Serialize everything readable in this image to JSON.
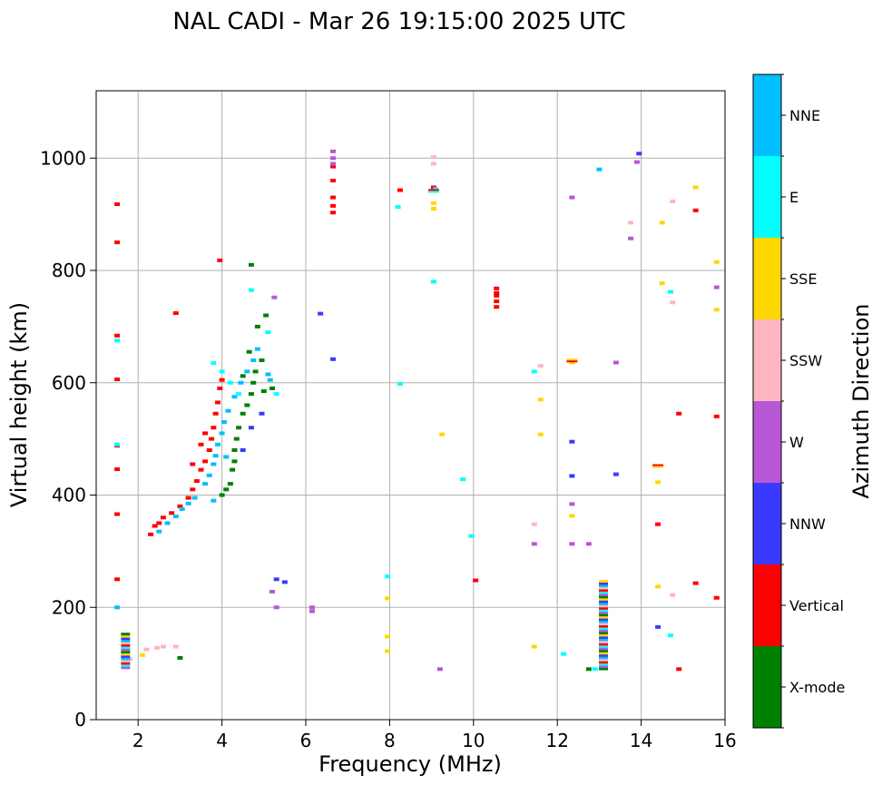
{
  "chart_data": {
    "type": "scatter",
    "title": "NAL CADI - Mar 26 19:15:00 2025 UTC",
    "xlabel": "Frequency (MHz)",
    "ylabel": "Virtual height (km)",
    "xlim": [
      1,
      16
    ],
    "ylim": [
      0,
      1120
    ],
    "xticks": [
      2,
      4,
      6,
      8,
      10,
      12,
      14,
      16
    ],
    "yticks": [
      0,
      200,
      400,
      600,
      800,
      1000
    ],
    "grid": true,
    "colorbar": {
      "label": "Azimuth Direction",
      "categories": [
        {
          "name": "X-mode",
          "color": "#008000"
        },
        {
          "name": "Vertical",
          "color": "#ff0000"
        },
        {
          "name": "NNW",
          "color": "#3a3aff"
        },
        {
          "name": "W",
          "color": "#b857d6"
        },
        {
          "name": "SSW",
          "color": "#ffb6c1"
        },
        {
          "name": "SSE",
          "color": "#ffd700"
        },
        {
          "name": "E",
          "color": "#00ffff"
        },
        {
          "name": "NNE",
          "color": "#00bfff"
        }
      ]
    },
    "series": [
      {
        "name": "Vertical",
        "points": [
          [
            1.5,
            918
          ],
          [
            1.5,
            850
          ],
          [
            1.5,
            684
          ],
          [
            1.5,
            606
          ],
          [
            1.5,
            488
          ],
          [
            1.5,
            446
          ],
          [
            1.5,
            366
          ],
          [
            1.5,
            250
          ],
          [
            3.95,
            818
          ],
          [
            2.9,
            724
          ],
          [
            6.65,
            930
          ],
          [
            6.65,
            915
          ],
          [
            6.65,
            903
          ],
          [
            6.65,
            960
          ],
          [
            6.65,
            985
          ],
          [
            8.25,
            943
          ],
          [
            9.05,
            948
          ],
          [
            10.55,
            768
          ],
          [
            10.55,
            755
          ],
          [
            10.55,
            745
          ],
          [
            10.55,
            735
          ],
          [
            10.55,
            760
          ],
          [
            10.05,
            248
          ],
          [
            14.4,
            348
          ],
          [
            14.9,
            545
          ],
          [
            15.8,
            540
          ],
          [
            15.3,
            907
          ],
          [
            15.3,
            243
          ],
          [
            15.8,
            217
          ],
          [
            14.9,
            90
          ],
          [
            2.3,
            330
          ],
          [
            2.4,
            345
          ],
          [
            2.5,
            350
          ],
          [
            2.6,
            360
          ],
          [
            2.8,
            368
          ],
          [
            3.0,
            380
          ],
          [
            3.2,
            395
          ],
          [
            3.3,
            410
          ],
          [
            3.4,
            425
          ],
          [
            3.5,
            445
          ],
          [
            3.6,
            460
          ],
          [
            3.7,
            480
          ],
          [
            3.75,
            500
          ],
          [
            3.8,
            520
          ],
          [
            3.85,
            545
          ],
          [
            3.9,
            565
          ],
          [
            3.95,
            590
          ],
          [
            4.0,
            605
          ],
          [
            3.6,
            510
          ],
          [
            3.5,
            490
          ],
          [
            3.3,
            455
          ]
        ]
      },
      {
        "name": "X-mode",
        "points": [
          [
            4.0,
            400
          ],
          [
            4.1,
            410
          ],
          [
            4.2,
            420
          ],
          [
            4.25,
            445
          ],
          [
            4.3,
            460
          ],
          [
            4.3,
            480
          ],
          [
            4.35,
            500
          ],
          [
            4.4,
            520
          ],
          [
            4.5,
            545
          ],
          [
            4.6,
            560
          ],
          [
            4.7,
            580
          ],
          [
            4.75,
            600
          ],
          [
            4.8,
            620
          ],
          [
            4.65,
            655
          ],
          [
            4.85,
            700
          ],
          [
            5.0,
            585
          ],
          [
            5.05,
            720
          ],
          [
            5.2,
            590
          ],
          [
            4.7,
            810
          ],
          [
            4.95,
            640
          ],
          [
            4.5,
            612
          ],
          [
            3.0,
            110
          ],
          [
            12.75,
            90
          ]
        ]
      },
      {
        "name": "NNE",
        "points": [
          [
            2.5,
            335
          ],
          [
            2.7,
            350
          ],
          [
            2.9,
            362
          ],
          [
            3.05,
            375
          ],
          [
            3.2,
            385
          ],
          [
            3.35,
            395
          ],
          [
            3.6,
            420
          ],
          [
            3.7,
            435
          ],
          [
            3.8,
            455
          ],
          [
            3.85,
            470
          ],
          [
            3.9,
            490
          ],
          [
            4.0,
            510
          ],
          [
            4.05,
            530
          ],
          [
            4.15,
            550
          ],
          [
            4.3,
            575
          ],
          [
            4.45,
            600
          ],
          [
            4.6,
            620
          ],
          [
            4.75,
            640
          ],
          [
            4.85,
            660
          ],
          [
            5.1,
            615
          ],
          [
            5.15,
            605
          ],
          [
            3.8,
            390
          ],
          [
            4.1,
            468
          ],
          [
            13.0,
            980
          ],
          [
            1.5,
            200
          ]
        ]
      },
      {
        "name": "E",
        "points": [
          [
            3.8,
            635
          ],
          [
            4.0,
            620
          ],
          [
            4.2,
            600
          ],
          [
            4.4,
            580
          ],
          [
            4.7,
            765
          ],
          [
            5.1,
            690
          ],
          [
            5.3,
            580
          ],
          [
            8.25,
            598
          ],
          [
            8.2,
            913
          ],
          [
            9.1,
            945
          ],
          [
            9.05,
            780
          ],
          [
            9.75,
            428
          ],
          [
            9.95,
            327
          ],
          [
            11.45,
            620
          ],
          [
            12.15,
            117
          ],
          [
            14.7,
            762
          ],
          [
            14.7,
            150
          ],
          [
            12.9,
            90
          ],
          [
            7.95,
            255
          ],
          [
            1.5,
            490
          ],
          [
            1.5,
            675
          ]
        ]
      },
      {
        "name": "NNW",
        "points": [
          [
            6.35,
            723
          ],
          [
            6.65,
            642
          ],
          [
            5.3,
            250
          ],
          [
            5.5,
            245
          ],
          [
            13.95,
            1008
          ],
          [
            12.35,
            495
          ],
          [
            12.35,
            434
          ],
          [
            13.4,
            437
          ],
          [
            14.4,
            165
          ],
          [
            4.5,
            480
          ],
          [
            4.7,
            520
          ],
          [
            4.95,
            545
          ]
        ]
      },
      {
        "name": "W",
        "points": [
          [
            6.65,
            1012
          ],
          [
            6.65,
            1000
          ],
          [
            6.65,
            990
          ],
          [
            5.25,
            752
          ],
          [
            6.15,
            200
          ],
          [
            6.15,
            193
          ],
          [
            5.2,
            228
          ],
          [
            5.3,
            200
          ],
          [
            12.35,
            930
          ],
          [
            13.9,
            993
          ],
          [
            13.4,
            636
          ],
          [
            13.75,
            857
          ],
          [
            12.35,
            384
          ],
          [
            12.35,
            313
          ],
          [
            12.75,
            313
          ],
          [
            15.8,
            770
          ],
          [
            11.45,
            313
          ],
          [
            9.2,
            90
          ]
        ]
      },
      {
        "name": "SSW",
        "points": [
          [
            9.05,
            1002
          ],
          [
            9.05,
            990
          ],
          [
            11.6,
            630
          ],
          [
            11.45,
            348
          ],
          [
            13.75,
            885
          ],
          [
            14.75,
            923
          ],
          [
            14.75,
            743
          ],
          [
            14.75,
            222
          ],
          [
            2.6,
            130
          ],
          [
            2.9,
            130
          ],
          [
            2.45,
            128
          ],
          [
            2.2,
            125
          ],
          [
            1.8,
            108
          ]
        ]
      },
      {
        "name": "SSE",
        "points": [
          [
            9.05,
            920
          ],
          [
            9.05,
            910
          ],
          [
            9.25,
            508
          ],
          [
            11.6,
            570
          ],
          [
            11.6,
            508
          ],
          [
            12.35,
            636
          ],
          [
            12.35,
            363
          ],
          [
            14.5,
            777
          ],
          [
            14.5,
            885
          ],
          [
            14.4,
            423
          ],
          [
            14.4,
            237
          ],
          [
            15.3,
            948
          ],
          [
            15.8,
            815
          ],
          [
            15.8,
            730
          ],
          [
            7.95,
            216
          ],
          [
            7.95,
            148
          ],
          [
            7.95,
            122
          ],
          [
            11.45,
            130
          ],
          [
            2.1,
            115
          ]
        ]
      }
    ],
    "stacks": [
      {
        "x": 13.1,
        "ymin": 88,
        "ymax": 245
      },
      {
        "x": 1.7,
        "ymin": 90,
        "ymax": 150
      }
    ],
    "pairs": [
      {
        "x": 14.4,
        "y": 450,
        "colors": [
          "#ff0000",
          "#ffd700"
        ]
      },
      {
        "x": 12.35,
        "y": 638,
        "colors": [
          "#ffd700",
          "#ff0000"
        ]
      },
      {
        "x": 9.05,
        "y": 940,
        "colors": [
          "#ff0000",
          "#00ffff"
        ]
      }
    ]
  }
}
